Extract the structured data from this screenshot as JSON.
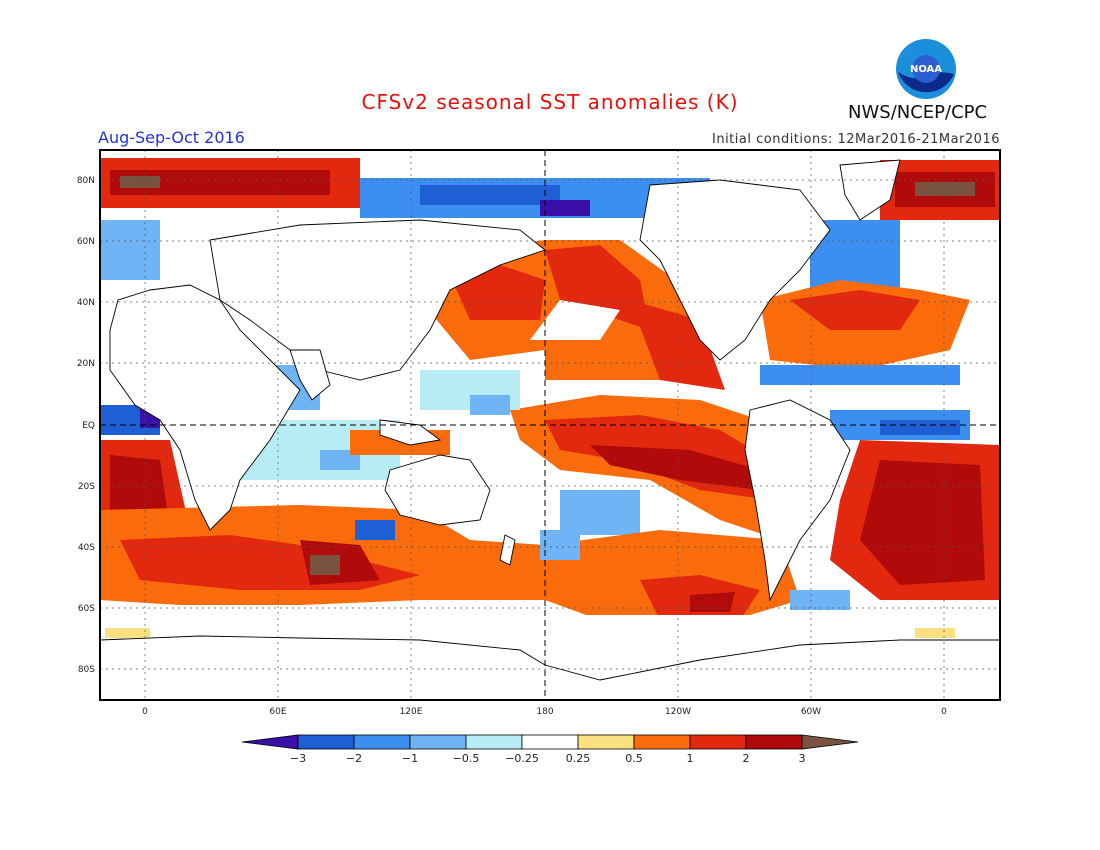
{
  "title": "CFSv2 seasonal SST anomalies (K)",
  "period": "Aug-Sep-Oct 2016",
  "agency": "NWS/NCEP/CPC",
  "logo_text": "NOAA",
  "initial_conditions": "Initial conditions: 12Mar2016-21Mar2016",
  "map": {
    "lat_labels": [
      "80N",
      "60N",
      "40N",
      "20N",
      "EQ",
      "20S",
      "40S",
      "60S",
      "80S"
    ],
    "lon_labels": [
      "0",
      "60E",
      "120E",
      "180",
      "120W",
      "60W",
      "0"
    ]
  },
  "colorbar": {
    "levels": [
      "-3",
      "-2",
      "-1",
      "-0.5",
      "-0.25",
      "0.25",
      "0.5",
      "1",
      "2",
      "3"
    ],
    "colors": [
      "#3a10a8",
      "#1f5fd4",
      "#3c8ff0",
      "#6fb5f5",
      "#b7ecf5",
      "#ffffff",
      "#fbe07f",
      "#fa6b0c",
      "#e2290f",
      "#b10a0a",
      "#7a5240"
    ]
  },
  "colors": {
    "title": "#e8100c",
    "period": "#2233dd",
    "land": "#ffffff",
    "coast": "#000000"
  }
}
